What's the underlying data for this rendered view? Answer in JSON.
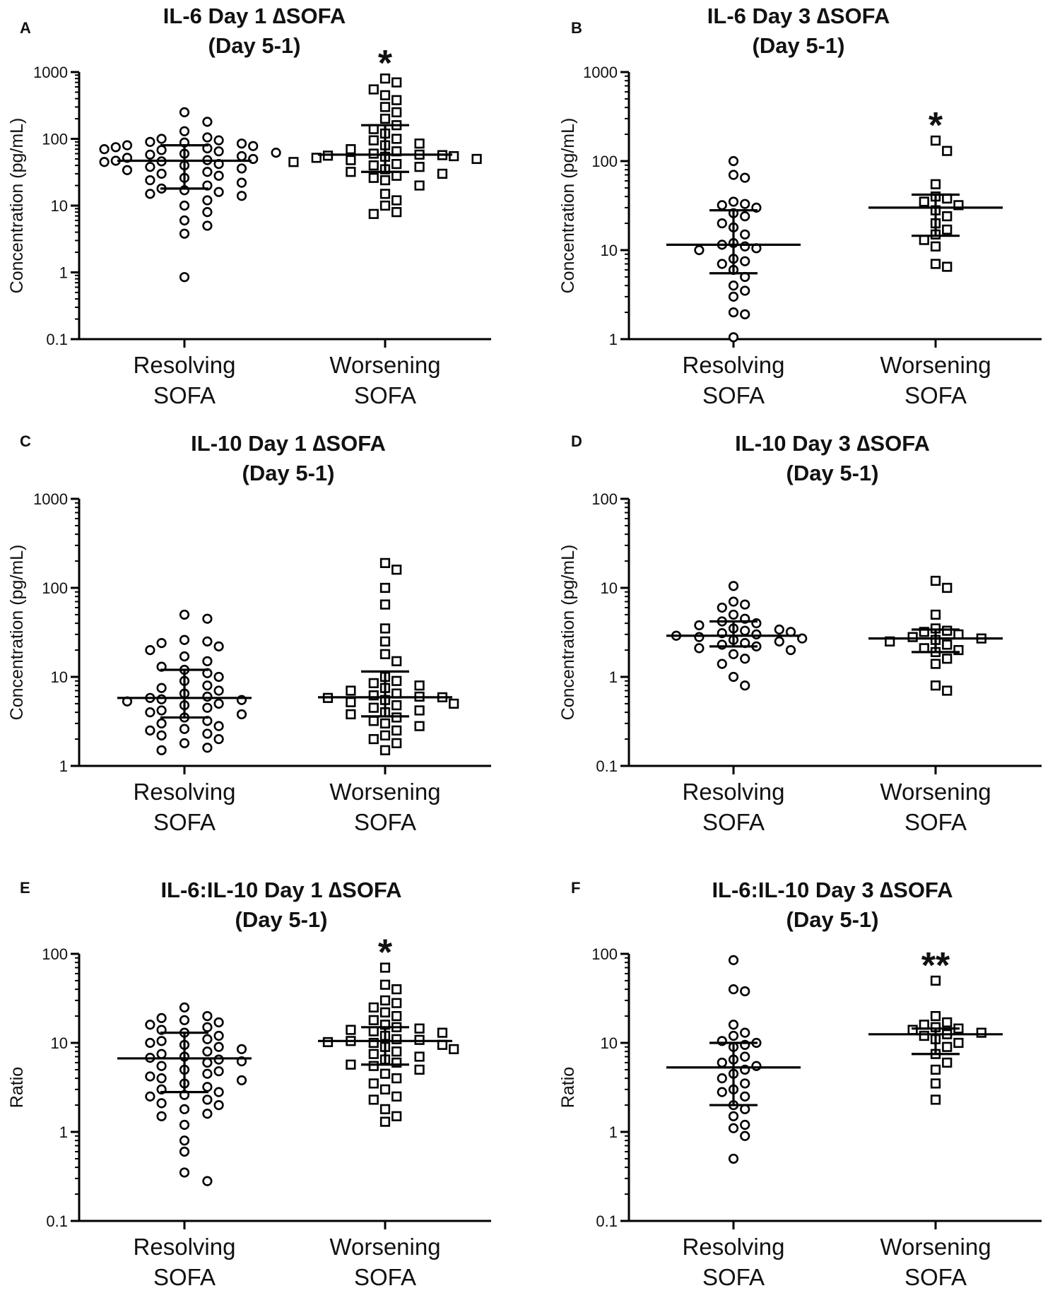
{
  "chart_data": [
    {
      "type": "scatter",
      "panel": "A",
      "title_line1": "IL-6 Day 1 ∆SOFA",
      "title_line2": "(Day 5-1)",
      "ylabel": "Concentration (pg/mL)",
      "yscale": "log",
      "ylim": [
        0.1,
        1000
      ],
      "yticks": [
        "1000",
        "100",
        "10",
        "1",
        "0.1"
      ],
      "categories": [
        {
          "line1": "Resolving",
          "line2": "SOFA"
        },
        {
          "line1": "Worsening",
          "line2": "SOFA"
        }
      ],
      "significance": [
        "",
        "*"
      ],
      "series": [
        {
          "name": "Resolving SOFA",
          "marker": "circle",
          "median": 47,
          "q1": 18,
          "q3": 80,
          "values": [
            250,
            180,
            130,
            105,
            100,
            95,
            90,
            88,
            85,
            80,
            78,
            75,
            72,
            70,
            68,
            65,
            62,
            60,
            58,
            55,
            52,
            50,
            48,
            47,
            46,
            45,
            42,
            40,
            38,
            36,
            34,
            32,
            30,
            28,
            26,
            24,
            22,
            20,
            18,
            17,
            16,
            15,
            14,
            12,
            10,
            8,
            6,
            5,
            3.8,
            0.85
          ]
        },
        {
          "name": "Worsening SOFA",
          "marker": "square",
          "median": 58,
          "q1": 32,
          "q3": 160,
          "values": [
            800,
            700,
            550,
            450,
            380,
            300,
            250,
            200,
            160,
            140,
            120,
            100,
            95,
            85,
            80,
            70,
            65,
            60,
            58,
            57,
            56,
            55,
            54,
            52,
            50,
            48,
            45,
            42,
            40,
            38,
            35,
            32,
            30,
            28,
            26,
            24,
            20,
            15,
            12,
            10,
            8,
            7.5
          ]
        }
      ]
    },
    {
      "type": "scatter",
      "panel": "B",
      "title_line1": "IL-6 Day 3 ∆SOFA",
      "title_line2": "(Day 5-1)",
      "ylabel": "Concentration (pg/mL)",
      "yscale": "log",
      "ylim": [
        1,
        1000
      ],
      "yticks": [
        "1000",
        "100",
        "10",
        "1"
      ],
      "categories": [
        {
          "line1": "Resolving",
          "line2": "SOFA"
        },
        {
          "line1": "Worsening",
          "line2": "SOFA"
        }
      ],
      "significance": [
        "",
        "*"
      ],
      "series": [
        {
          "name": "Resolving SOFA",
          "marker": "circle",
          "median": 11.5,
          "q1": 5.5,
          "q3": 28,
          "values": [
            100,
            70,
            65,
            35,
            33,
            32,
            30,
            26,
            24,
            20,
            18,
            15,
            12,
            11.5,
            11,
            10.5,
            10,
            8,
            7.5,
            7,
            6,
            5,
            4,
            3.5,
            3,
            2,
            1.9,
            1.05
          ]
        },
        {
          "name": "Worsening SOFA",
          "marker": "square",
          "median": 30,
          "q1": 14.5,
          "q3": 42,
          "values": [
            170,
            130,
            55,
            40,
            38,
            35,
            32,
            28,
            24,
            20,
            17,
            15,
            13,
            11,
            7,
            6.5
          ]
        }
      ]
    },
    {
      "type": "scatter",
      "panel": "C",
      "title_line1": "IL-10 Day 1 ∆SOFA",
      "title_line2": "(Day 5-1)",
      "ylabel": "Concentration (pg/mL)",
      "yscale": "log",
      "ylim": [
        1,
        1000
      ],
      "yticks": [
        "1000",
        "100",
        "10",
        "1"
      ],
      "categories": [
        {
          "line1": "Resolving",
          "line2": "SOFA"
        },
        {
          "line1": "Worsening",
          "line2": "SOFA"
        }
      ],
      "significance": [
        "",
        ""
      ],
      "series": [
        {
          "name": "Resolving SOFA",
          "marker": "circle",
          "median": 5.8,
          "q1": 3.5,
          "q3": 12,
          "values": [
            50,
            45,
            26,
            25,
            24,
            22,
            20,
            17,
            15,
            13,
            12,
            11,
            10,
            9,
            8,
            7.5,
            7,
            6.5,
            6,
            5.8,
            5.6,
            5.5,
            5.3,
            5,
            4.8,
            4.5,
            4.2,
            4,
            3.8,
            3.5,
            3.2,
            3,
            2.8,
            2.6,
            2.5,
            2.3,
            2.2,
            2,
            1.8,
            1.6,
            1.5
          ]
        },
        {
          "name": "Worsening SOFA",
          "marker": "square",
          "median": 5.9,
          "q1": 3.6,
          "q3": 11.5,
          "values": [
            190,
            160,
            100,
            65,
            35,
            25,
            18,
            15,
            10,
            9,
            8.5,
            8,
            7.5,
            7,
            6.5,
            6.2,
            6,
            5.9,
            5.8,
            5.5,
            5.2,
            5,
            4.8,
            4.5,
            4.2,
            4,
            3.8,
            3.5,
            3.2,
            3,
            2.8,
            2.5,
            2.2,
            2,
            1.8,
            1.5
          ]
        }
      ]
    },
    {
      "type": "scatter",
      "panel": "D",
      "title_line1": "IL-10 Day 3 ∆SOFA",
      "title_line2": "(Day 5-1)",
      "ylabel": "Concentration (pg/mL)",
      "yscale": "log",
      "ylim": [
        0.1,
        100
      ],
      "yticks": [
        "100",
        "10",
        "1",
        "0.1"
      ],
      "categories": [
        {
          "line1": "Resolving",
          "line2": "SOFA"
        },
        {
          "line1": "Worsening",
          "line2": "SOFA"
        }
      ],
      "significance": [
        "",
        ""
      ],
      "series": [
        {
          "name": "Resolving SOFA",
          "marker": "circle",
          "median": 2.9,
          "q1": 2.2,
          "q3": 4.2,
          "values": [
            10.5,
            7,
            6.5,
            6,
            5,
            4.5,
            4.2,
            4,
            3.8,
            3.5,
            3.4,
            3.3,
            3.2,
            3.1,
            3,
            2.9,
            2.8,
            2.7,
            2.6,
            2.5,
            2.4,
            2.3,
            2.2,
            2.1,
            2,
            1.8,
            1.6,
            1.4,
            1,
            0.8
          ]
        },
        {
          "name": "Worsening SOFA",
          "marker": "square",
          "median": 2.7,
          "q1": 1.9,
          "q3": 3.4,
          "values": [
            12,
            10,
            5,
            3.5,
            3.3,
            3.2,
            3,
            2.8,
            2.7,
            2.6,
            2.5,
            2.3,
            2.1,
            2,
            1.9,
            1.6,
            1.4,
            0.8,
            0.7
          ]
        }
      ]
    },
    {
      "type": "scatter",
      "panel": "E",
      "title_line1": "IL-6:IL-10 Day 1 ∆SOFA",
      "title_line2": "(Day 5-1)",
      "ylabel": "Ratio",
      "yscale": "log",
      "ylim": [
        0.1,
        100
      ],
      "yticks": [
        "100",
        "10",
        "1",
        "0.1"
      ],
      "categories": [
        {
          "line1": "Resolving",
          "line2": "SOFA"
        },
        {
          "line1": "Worsening",
          "line2": "SOFA"
        }
      ],
      "significance": [
        "",
        "*"
      ],
      "series": [
        {
          "name": "Resolving SOFA",
          "marker": "circle",
          "median": 6.7,
          "q1": 2.8,
          "q3": 13,
          "values": [
            25,
            20,
            19,
            18,
            17,
            16,
            15,
            14,
            13,
            12,
            11,
            10.5,
            10,
            9.5,
            9,
            8.5,
            8,
            7.5,
            7,
            6.8,
            6.5,
            6.2,
            6,
            5.5,
            5,
            4.8,
            4.5,
            4.2,
            4,
            3.8,
            3.5,
            3.2,
            3,
            2.8,
            2.6,
            2.5,
            2.3,
            2.1,
            2,
            1.8,
            1.6,
            1.5,
            1.2,
            0.8,
            0.6,
            0.35,
            0.28
          ]
        },
        {
          "name": "Worsening SOFA",
          "marker": "square",
          "median": 10.5,
          "q1": 5.7,
          "q3": 15,
          "values": [
            70,
            45,
            40,
            30,
            28,
            25,
            22,
            20,
            18,
            16,
            15,
            14.5,
            14,
            13.5,
            13,
            12,
            11,
            10.8,
            10.5,
            10.2,
            10,
            9.5,
            9,
            8.5,
            8,
            7.5,
            7,
            6.5,
            6,
            5.7,
            5.5,
            5,
            4.5,
            4,
            3.5,
            3,
            2.5,
            2.3,
            1.8,
            1.5,
            1.3
          ]
        }
      ]
    },
    {
      "type": "scatter",
      "panel": "F",
      "title_line1": "IL-6:IL-10 Day 3 ∆SOFA",
      "title_line2": "(Day 5-1)",
      "ylabel": "Ratio",
      "yscale": "log",
      "ylim": [
        0.1,
        100
      ],
      "yticks": [
        "100",
        "10",
        "1",
        "0.1"
      ],
      "categories": [
        {
          "line1": "Resolving",
          "line2": "SOFA"
        },
        {
          "line1": "Worsening",
          "line2": "SOFA"
        }
      ],
      "significance": [
        "",
        "**"
      ],
      "series": [
        {
          "name": "Resolving SOFA",
          "marker": "circle",
          "median": 5.3,
          "q1": 2,
          "q3": 10,
          "values": [
            85,
            40,
            38,
            16,
            13,
            12,
            10.5,
            10,
            9.5,
            9,
            7,
            6.5,
            6,
            5.5,
            5,
            4.5,
            4,
            3.5,
            3,
            2.8,
            2.5,
            2,
            1.8,
            1.5,
            1.2,
            1.1,
            0.9,
            0.5
          ]
        },
        {
          "name": "Worsening SOFA",
          "marker": "square",
          "median": 12.5,
          "q1": 7.5,
          "q3": 14.5,
          "values": [
            50,
            20,
            17,
            16,
            15,
            14.5,
            14,
            13,
            12.5,
            12,
            11,
            10,
            9,
            7.5,
            6,
            5,
            3.5,
            2.3
          ]
        }
      ]
    }
  ]
}
